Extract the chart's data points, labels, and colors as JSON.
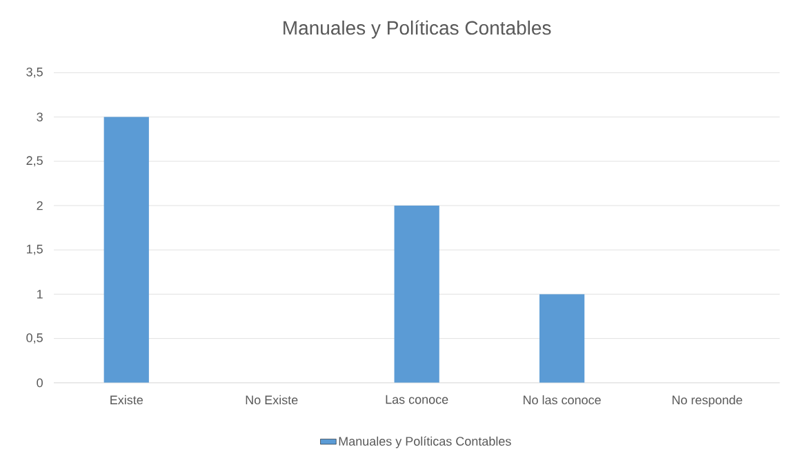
{
  "chart_data": {
    "type": "bar",
    "title": "Manuales y Políticas Contables",
    "categories": [
      "Existe",
      "No Existe",
      "Las conoce",
      "No las conoce",
      "No responde"
    ],
    "series": [
      {
        "name": "Manuales y Políticas Contables",
        "color": "#5b9bd5",
        "values": [
          3,
          0,
          2,
          1,
          0
        ]
      }
    ],
    "ylim": [
      0,
      3.5
    ],
    "yticks": [
      0,
      {
        "value": 0.5,
        "label": "0,5"
      },
      1,
      {
        "value": 1.5,
        "label": "1,5"
      },
      2,
      {
        "value": 2.5,
        "label": "2,5"
      },
      3,
      {
        "value": 3.5,
        "label": "3,5"
      }
    ],
    "grid": "y",
    "legend": "bottom"
  }
}
